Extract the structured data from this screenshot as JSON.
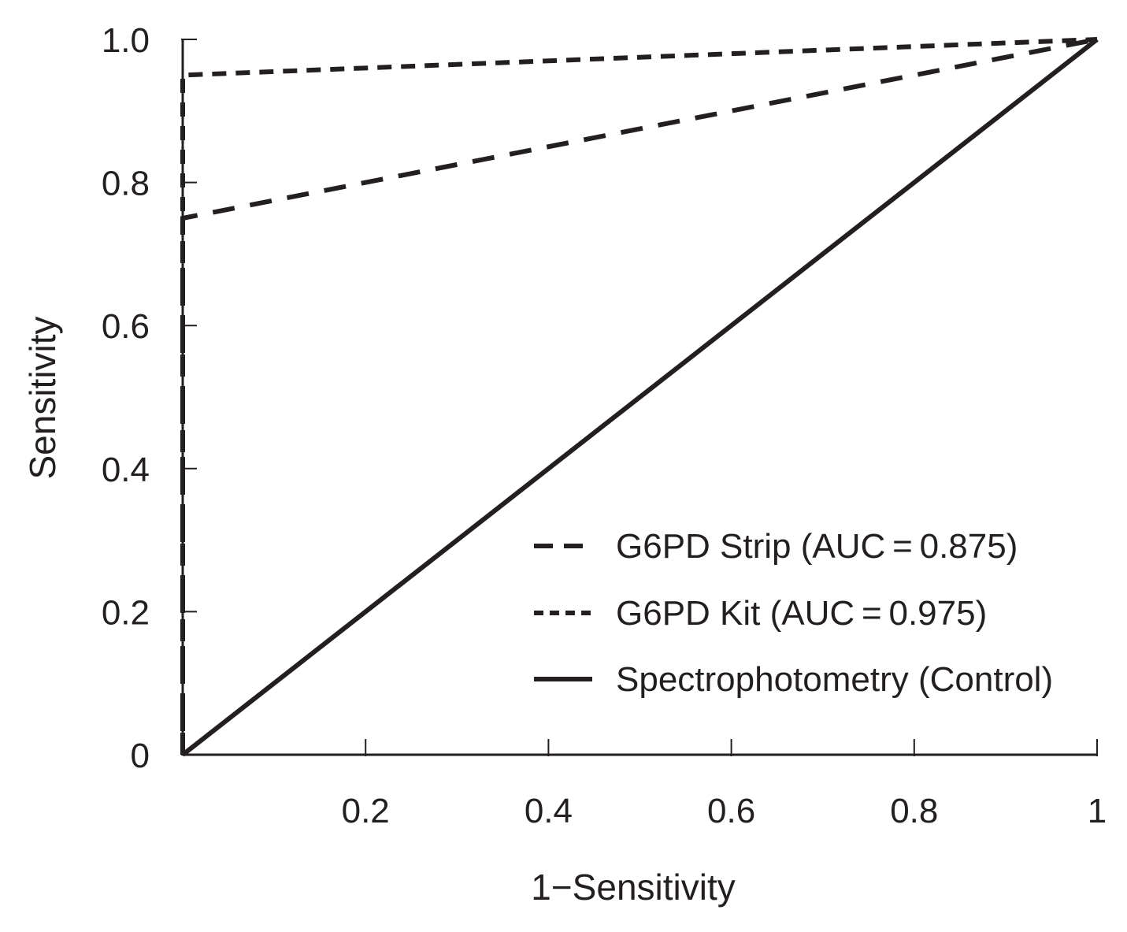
{
  "chart_data": {
    "type": "line",
    "title": "",
    "xlabel": "1−Sensitivity",
    "ylabel": "Sensitivity",
    "xlim": [
      0,
      1
    ],
    "ylim": [
      0,
      1
    ],
    "x_ticks": [
      0.2,
      0.4,
      0.6,
      0.8,
      1
    ],
    "x_tick_labels": [
      "0.2",
      "0.4",
      "0.6",
      "0.8",
      "1"
    ],
    "y_ticks": [
      0,
      0.2,
      0.4,
      0.6,
      0.8,
      1.0
    ],
    "y_tick_labels": [
      "0",
      "0.2",
      "0.4",
      "0.6",
      "0.8",
      "1.0"
    ],
    "grid": false,
    "legend_position": "bottom-right",
    "series": [
      {
        "name": "G6PD Strip (AUC = 0.875)",
        "style": "long-dash",
        "x": [
          0,
          0,
          1
        ],
        "y": [
          0,
          0.75,
          1
        ]
      },
      {
        "name": "G6PD Kit (AUC = 0.975)",
        "style": "short-dash",
        "x": [
          0,
          0,
          1
        ],
        "y": [
          0,
          0.95,
          1
        ]
      },
      {
        "name": "Spectrophotometry (Control)",
        "style": "solid",
        "x": [
          0,
          1
        ],
        "y": [
          0,
          1
        ]
      }
    ],
    "line_color": "#231f20"
  }
}
